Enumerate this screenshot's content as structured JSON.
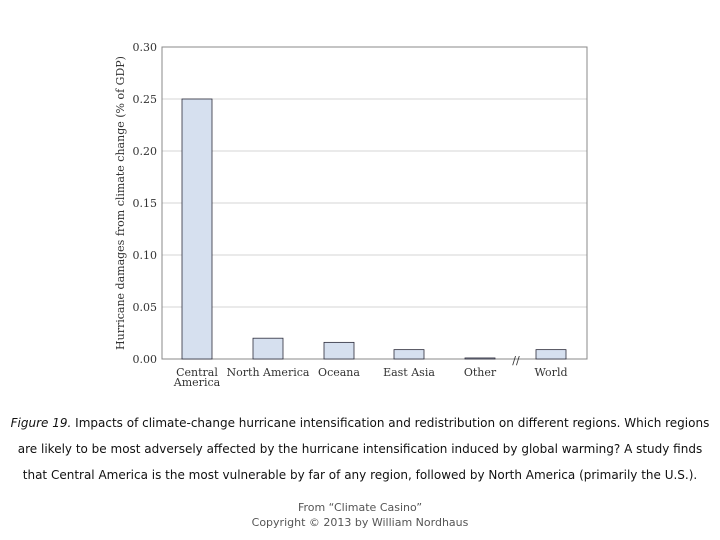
{
  "chart_data": {
    "type": "bar",
    "ylabel": "Hurricane damages from climate change (% of GDP)",
    "ylim": [
      0,
      0.3
    ],
    "yticks": [
      "0.00",
      "0.05",
      "0.10",
      "0.15",
      "0.20",
      "0.25",
      "0.30"
    ],
    "categories": [
      "Central America",
      "North America",
      "Oceana",
      "East Asia",
      "Other",
      "World"
    ],
    "values": [
      0.25,
      0.02,
      0.016,
      0.009,
      0.001,
      0.009
    ],
    "axis_break_marker": "//",
    "grid": true,
    "bar_color": "#d6e0ef"
  },
  "caption": {
    "figure_label": "Figure 19.",
    "text": "Impacts of climate-change hurricane intensification and redistribution on different regions. Which regions are likely to be most adversely affected by the hurricane intensification induced by global warming? A study finds that Central America is the most vulnerable by far of any region, followed by North America (primarily the U.S.)."
  },
  "credit": {
    "line1": "From “Climate Casino”",
    "line2": "Copyright © 2013 by William Nordhaus"
  }
}
